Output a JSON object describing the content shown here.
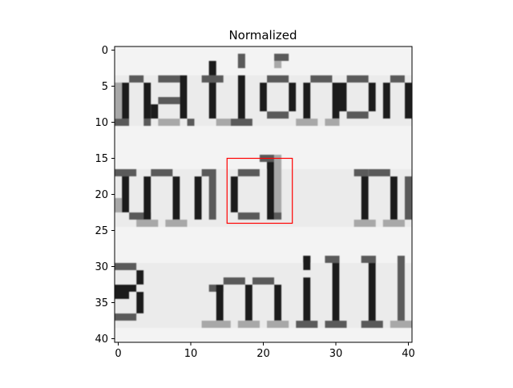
{
  "chart_data": {
    "type": "heatmap",
    "title": "Normalized",
    "image_description": "grayscale normalized crop of printed text (three lines: 'nation', 'and  n', '3  mill') with a highlighted glyph box",
    "rows": 41,
    "cols": 41,
    "x_ticks": [
      0,
      10,
      20,
      30,
      40
    ],
    "y_ticks": [
      0,
      5,
      10,
      15,
      20,
      25,
      30,
      35,
      40
    ],
    "xlim": [
      -0.5,
      40.5
    ],
    "ylim": [
      40.5,
      -0.5
    ],
    "colormap": "gray",
    "text_lines": [
      {
        "text": "nation",
        "top": 3.5,
        "bottom": 10.5
      },
      {
        "text": "and  n",
        "top": 16.5,
        "bottom": 24.5
      },
      {
        "text": "3  mill",
        "top": 29.5,
        "bottom": 38.5
      }
    ],
    "highlight_box": {
      "x0": 15,
      "y0": 15,
      "x1": 24,
      "y1": 24,
      "color": "#ff0000"
    }
  }
}
